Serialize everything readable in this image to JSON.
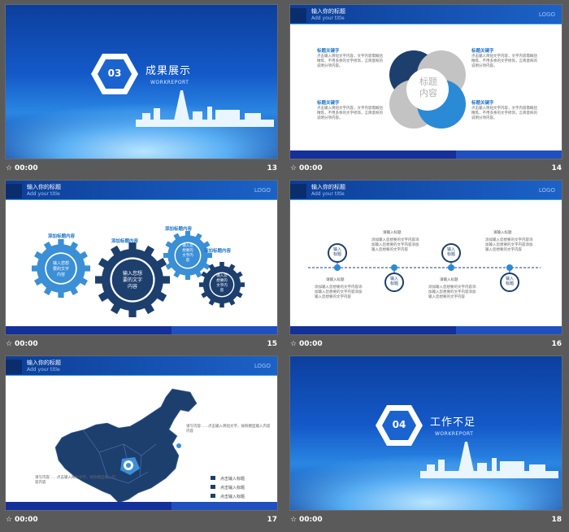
{
  "slides": [
    {
      "number": "13",
      "time": "00:00",
      "hex_label": "03",
      "title": "成果展示",
      "subtitle": "WORKREPORT"
    },
    {
      "number": "14",
      "time": "00:00",
      "header_title": "输入你的标题",
      "header_sub": "Add your title",
      "logo": "LOGO",
      "center_text": [
        "标题",
        "内容"
      ],
      "keyword": "标题关键字",
      "body": "点击输入简短文字内容，文字内容需概括精炼，不用多余的文字修饰，言简意赅的说明分项内容。"
    },
    {
      "number": "15",
      "time": "00:00",
      "header_title": "输入你的标题",
      "header_sub": "Add your title",
      "logo": "LOGO",
      "gear_titles": [
        "添加标题内容",
        "添加标题内容",
        "添加标题内容",
        "添加标题内容"
      ],
      "gear_texts": [
        [
          "输入您想",
          "要的文字",
          "内容"
        ],
        [
          "输入您想",
          "要的文字",
          "内容"
        ],
        [
          "输入您",
          "想要的",
          "文字内",
          "容"
        ],
        [
          "输入您",
          "想要的",
          "文字内",
          "容"
        ]
      ]
    },
    {
      "number": "16",
      "time": "00:00",
      "header_title": "输入你的标题",
      "header_sub": "Add your title",
      "logo": "LOGO",
      "node_label": [
        "输入",
        "标题"
      ],
      "timeline_title": "请输入标题",
      "timeline_body": "添加输入您想要的文字内容添加输入您想要的文字内容添加输入您想要的文字内容"
    },
    {
      "number": "17",
      "time": "00:00",
      "header_title": "输入你的标题",
      "header_sub": "Add your title",
      "logo": "LOGO",
      "annotation_1": "请写内容……点击输入简短文字，按照模型输入内容内容",
      "annotation_2": "请写内容……点击输入简短文字，按照模型输入内容内容",
      "legend": [
        "点击输入标题",
        "点击输入标题",
        "点击输入标题"
      ]
    },
    {
      "number": "18",
      "time": "00:00",
      "hex_label": "04",
      "title": "工作不足",
      "subtitle": "WORKREPORT"
    }
  ],
  "colors": {
    "dark_navy": "#1d3f6e",
    "mid_blue": "#2a8ad6",
    "grey": "#bcbcbc",
    "panel_bg": "#5a5a5a"
  }
}
